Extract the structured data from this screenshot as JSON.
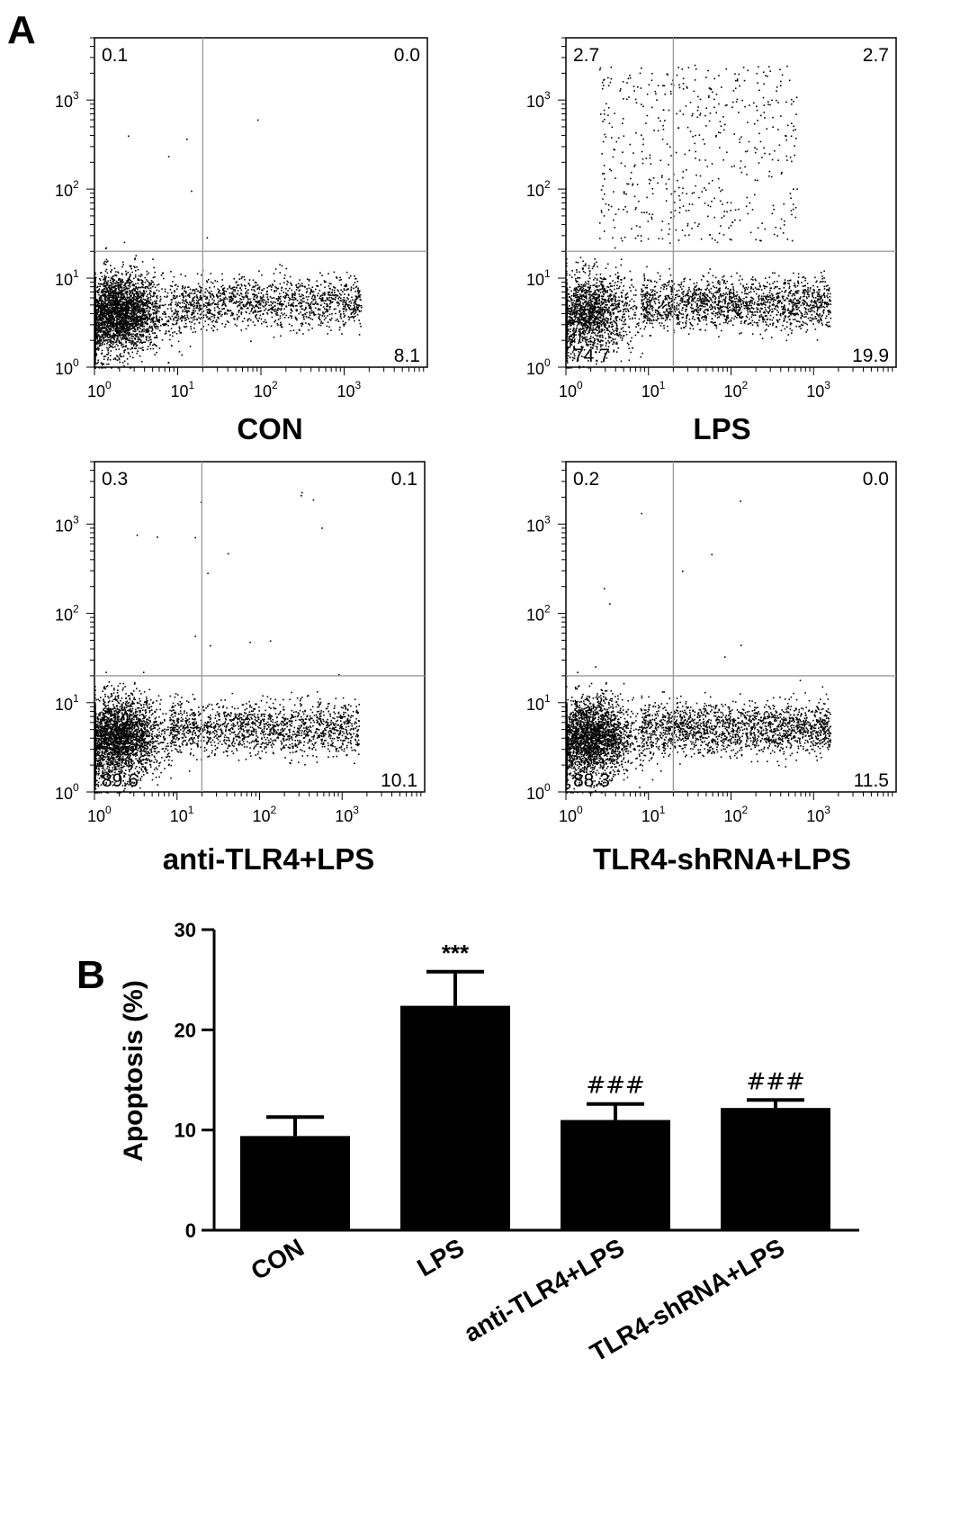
{
  "panel_letters": {
    "a": "A",
    "b": "B"
  },
  "chart_data": [
    {
      "type": "scatter",
      "title": "CON",
      "log_axes": true,
      "x_ticks": [
        "0",
        "1",
        "2",
        "3"
      ],
      "y_ticks": [
        "0",
        "1",
        "2",
        "3"
      ],
      "tick_base": "10",
      "xlim": [
        1,
        10000
      ],
      "ylim": [
        1,
        5000
      ],
      "gate": {
        "x": 20,
        "y": 20
      },
      "quadrants": {
        "upper_left": "0.1",
        "upper_right": "0.0",
        "lower_left": "",
        "lower_right": "8.1"
      }
    },
    {
      "type": "scatter",
      "title": "LPS",
      "log_axes": true,
      "x_ticks": [
        "0",
        "1",
        "2",
        "3"
      ],
      "y_ticks": [
        "0",
        "1",
        "2",
        "3"
      ],
      "tick_base": "10",
      "xlim": [
        1,
        10000
      ],
      "ylim": [
        1,
        5000
      ],
      "gate": {
        "x": 20,
        "y": 20
      },
      "quadrants": {
        "upper_left": "2.7",
        "upper_right": "2.7",
        "lower_left": "74.7",
        "lower_right": "19.9"
      }
    },
    {
      "type": "scatter",
      "title": "anti-TLR4+LPS",
      "log_axes": true,
      "x_ticks": [
        "0",
        "1",
        "2",
        "3"
      ],
      "y_ticks": [
        "0",
        "1",
        "2",
        "3"
      ],
      "tick_base": "10",
      "xlim": [
        1,
        10000
      ],
      "ylim": [
        1,
        5000
      ],
      "gate": {
        "x": 20,
        "y": 20
      },
      "quadrants": {
        "upper_left": "0.3",
        "upper_right": "0.1",
        "lower_left": "89.6",
        "lower_right": "10.1"
      }
    },
    {
      "type": "scatter",
      "title": "TLR4-shRNA+LPS",
      "log_axes": true,
      "x_ticks": [
        "0",
        "1",
        "2",
        "3"
      ],
      "y_ticks": [
        "0",
        "1",
        "2",
        "3"
      ],
      "tick_base": "10",
      "xlim": [
        1,
        10000
      ],
      "ylim": [
        1,
        5000
      ],
      "gate": {
        "x": 20,
        "y": 20
      },
      "quadrants": {
        "upper_left": "0.2",
        "upper_right": "0.0",
        "lower_left": "88.3",
        "lower_right": "11.5"
      }
    },
    {
      "type": "bar",
      "categories": [
        "CON",
        "LPS",
        "anti-TLR4+LPS",
        "TLR4-shRNA+LPS"
      ],
      "values": [
        9.4,
        22.4,
        11.0,
        12.2
      ],
      "errors": [
        1.9,
        3.4,
        1.6,
        0.8
      ],
      "annotations": [
        "",
        "***",
        "###",
        "###"
      ],
      "ylabel": "Apoptosis (%)",
      "ylim": [
        0,
        30
      ],
      "yticks": [
        0,
        10,
        20,
        30
      ],
      "bar_color": "#000000"
    }
  ]
}
